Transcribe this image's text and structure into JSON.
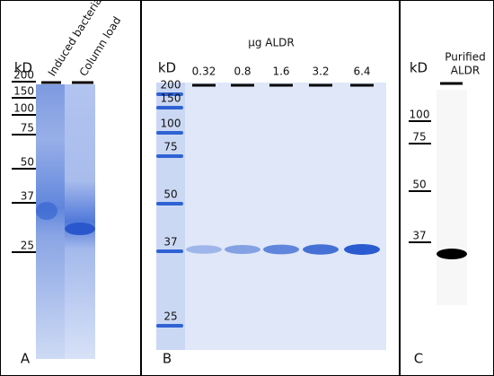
{
  "panels": [
    {
      "unit": "kD",
      "lanes": [
        "Induced bacteria",
        "Column load"
      ],
      "markers": [
        "200",
        "150",
        "100",
        "75",
        "50",
        "37",
        "25"
      ],
      "letter": "A"
    },
    {
      "title": "µg ALDR",
      "unit": "kD",
      "lanes": [
        "0.32",
        "0.8",
        "1.6",
        "3.2",
        "6.4"
      ],
      "markers": [
        "200",
        "150",
        "100",
        "75",
        "50",
        "37",
        "25"
      ],
      "letter": "B"
    },
    {
      "unit": "kD",
      "lane_label": [
        "Purified",
        "ALDR"
      ],
      "markers": [
        "100",
        "75",
        "50",
        "37"
      ],
      "letter": "C"
    }
  ]
}
